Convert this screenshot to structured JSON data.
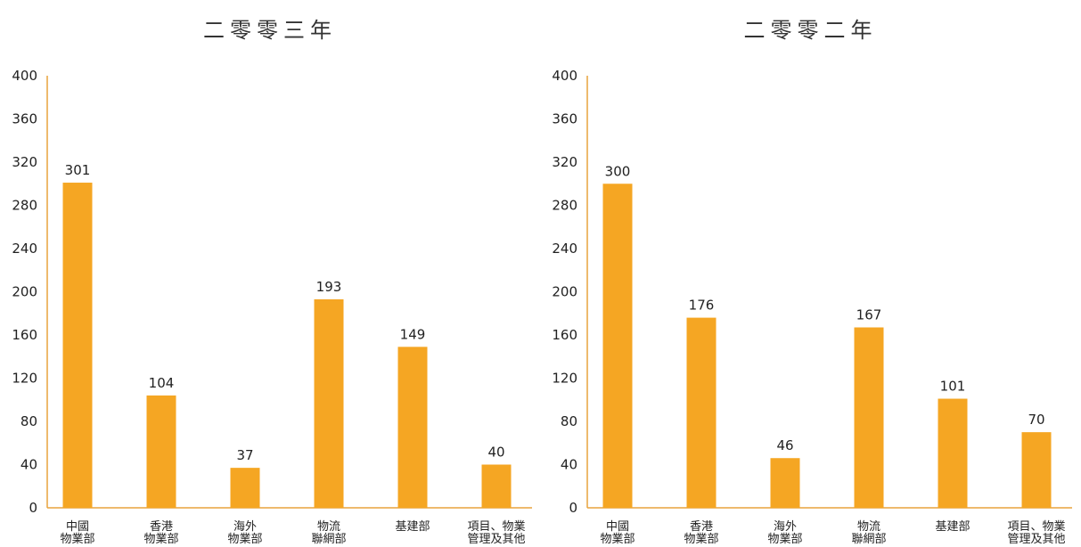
{
  "chart_data": [
    {
      "type": "bar",
      "title": "二零零三年",
      "categories": [
        [
          "中國",
          "物業部"
        ],
        [
          "香港",
          "物業部"
        ],
        [
          "海外",
          "物業部"
        ],
        [
          "物流",
          "聯網部"
        ],
        [
          "基建部"
        ],
        [
          "項目、物業",
          "管理及其他"
        ]
      ],
      "values": [
        301,
        104,
        37,
        193,
        149,
        40
      ],
      "ylim": [
        0,
        400
      ],
      "yticks": [
        0,
        40,
        80,
        120,
        160,
        200,
        240,
        280,
        320,
        360,
        400
      ],
      "color": "#F5A623",
      "axis_color": "#E8A33D"
    },
    {
      "type": "bar",
      "title": "二零零二年",
      "categories": [
        [
          "中國",
          "物業部"
        ],
        [
          "香港",
          "物業部"
        ],
        [
          "海外",
          "物業部"
        ],
        [
          "物流",
          "聯網部"
        ],
        [
          "基建部"
        ],
        [
          "項目、物業",
          "管理及其他"
        ]
      ],
      "values": [
        300,
        176,
        46,
        167,
        101,
        70
      ],
      "ylim": [
        0,
        400
      ],
      "yticks": [
        0,
        40,
        80,
        120,
        160,
        200,
        240,
        280,
        320,
        360,
        400
      ],
      "color": "#F5A623",
      "axis_color": "#E8A33D"
    }
  ]
}
